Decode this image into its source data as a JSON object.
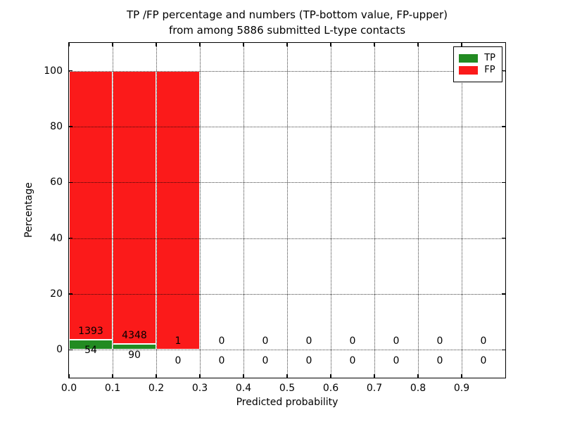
{
  "chart_data": {
    "type": "bar",
    "stacked": true,
    "title_lines": [
      "TP /FP percentage and numbers (TP-bottom value, FP-upper)",
      "from among 5886 submitted L-type contacts"
    ],
    "xlabel": "Predicted probability",
    "ylabel": "Percentage",
    "xlim": [
      0,
      1.0
    ],
    "ylim": [
      -10,
      110
    ],
    "xticks": [
      0.0,
      0.1,
      0.2,
      0.3,
      0.4,
      0.5,
      0.6,
      0.7,
      0.8,
      0.9
    ],
    "xtick_labels": [
      "0.0",
      "0.1",
      "0.2",
      "0.3",
      "0.4",
      "0.5",
      "0.6",
      "0.7",
      "0.8",
      "0.9"
    ],
    "yticks": [
      0,
      20,
      40,
      60,
      80,
      100
    ],
    "ytick_labels": [
      "0",
      "20",
      "40",
      "60",
      "80",
      "100"
    ],
    "grid": "dotted",
    "bin_width": 0.1,
    "total_contacts": 5886,
    "bins": [
      {
        "range": [
          0.0,
          0.1
        ],
        "tp": 54,
        "fp": 1393
      },
      {
        "range": [
          0.1,
          0.2
        ],
        "tp": 90,
        "fp": 4348
      },
      {
        "range": [
          0.2,
          0.3
        ],
        "tp": 0,
        "fp": 1
      },
      {
        "range": [
          0.3,
          0.4
        ],
        "tp": 0,
        "fp": 0
      },
      {
        "range": [
          0.4,
          0.5
        ],
        "tp": 0,
        "fp": 0
      },
      {
        "range": [
          0.5,
          0.6
        ],
        "tp": 0,
        "fp": 0
      },
      {
        "range": [
          0.6,
          0.7
        ],
        "tp": 0,
        "fp": 0
      },
      {
        "range": [
          0.7,
          0.8
        ],
        "tp": 0,
        "fp": 0
      },
      {
        "range": [
          0.8,
          0.9
        ],
        "tp": 0,
        "fp": 0
      },
      {
        "range": [
          0.9,
          1.0
        ],
        "tp": 0,
        "fp": 0
      }
    ],
    "series": [
      {
        "name": "TP",
        "color": "#228b22"
      },
      {
        "name": "FP",
        "color": "#fb1a1a"
      }
    ],
    "legend_position": "upper right"
  }
}
